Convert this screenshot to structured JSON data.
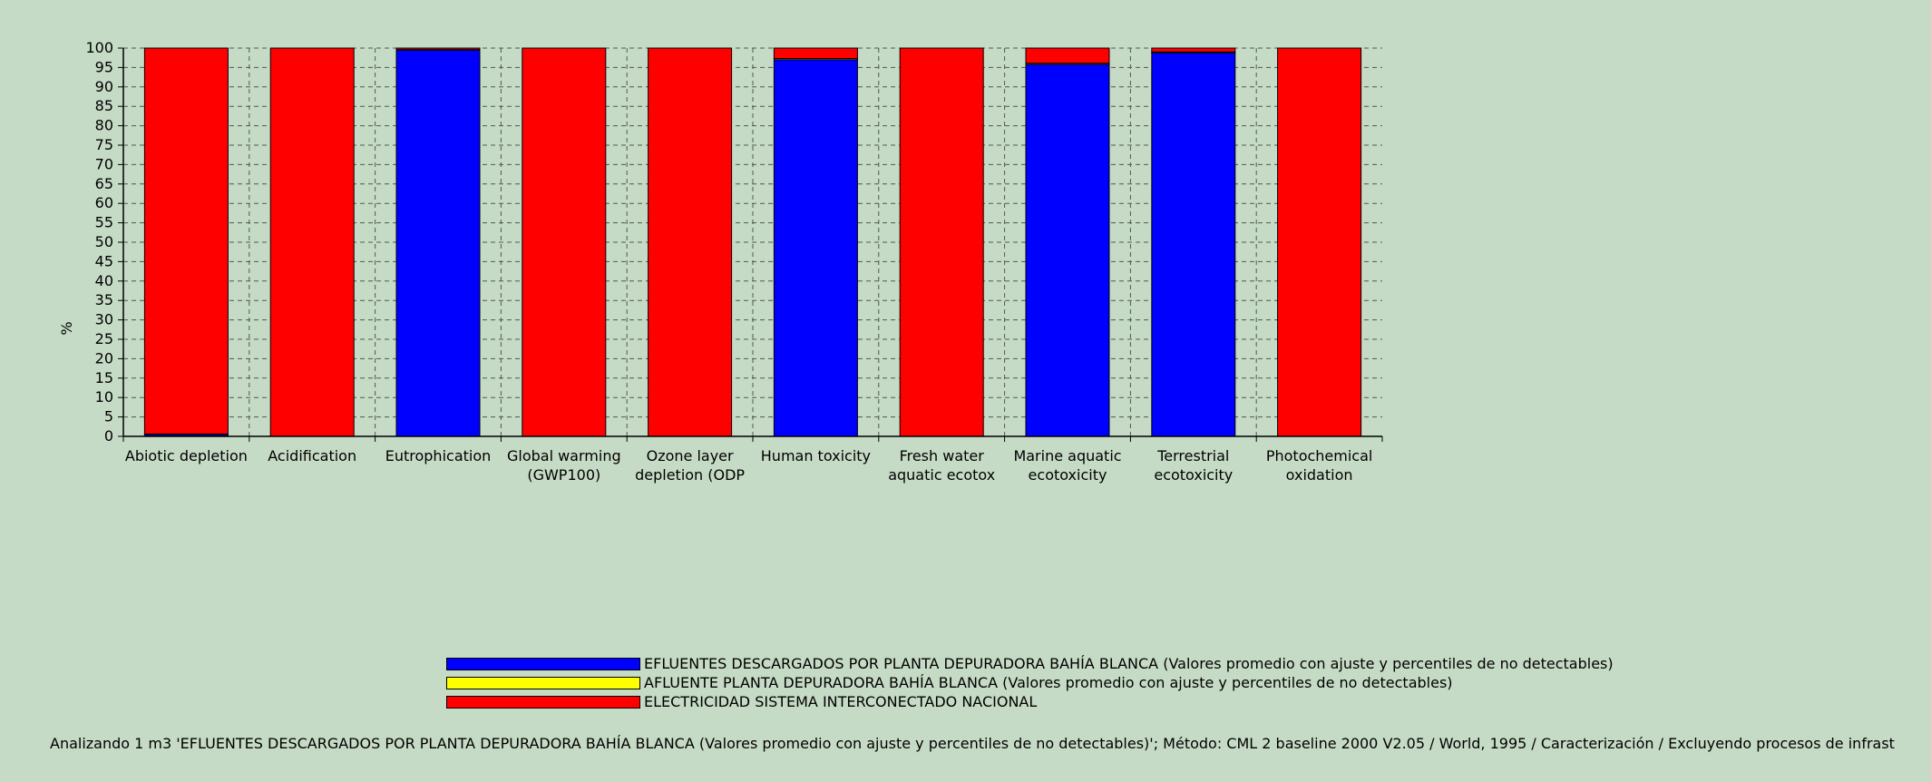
{
  "chart_data": {
    "type": "bar",
    "stacked": true,
    "ylabel": "%",
    "ylim": [
      0,
      100
    ],
    "yticks": [
      0,
      5,
      10,
      15,
      20,
      25,
      30,
      35,
      40,
      45,
      50,
      55,
      60,
      65,
      70,
      75,
      80,
      85,
      90,
      95,
      100
    ],
    "grid": true,
    "categories": [
      [
        "Abiotic depletion"
      ],
      [
        "Acidification"
      ],
      [
        "Eutrophication"
      ],
      [
        "Global warming",
        "(GWP100)"
      ],
      [
        "Ozone layer",
        "depletion (ODP"
      ],
      [
        "Human toxicity"
      ],
      [
        "Fresh water",
        "aquatic ecotox"
      ],
      [
        "Marine aquatic",
        "ecotoxicity"
      ],
      [
        "Terrestrial",
        "ecotoxicity"
      ],
      [
        "Photochemical",
        "oxidation"
      ]
    ],
    "series": [
      {
        "name": "EFLUENTES DESCARGADOS POR PLANTA DEPURADORA BAHÍA BLANCA  (Valores promedio con ajuste y percentiles de no detectables)",
        "color": "#0000ff",
        "values": [
          0.5,
          0,
          99.5,
          0,
          0,
          97,
          0,
          95.8,
          98.8,
          0
        ]
      },
      {
        "name": "AFLUENTE PLANTA DEPURADORA BAHÍA BLANCA (Valores promedio con ajuste y percentiles de no detectables)",
        "color": "#ffff00",
        "values": [
          0.1,
          0,
          0.1,
          0,
          0,
          0.3,
          0,
          0.3,
          0.2,
          0
        ]
      },
      {
        "name": "ELECTRICIDAD SISTEMA INTERCONECTADO NACIONAL",
        "color": "#ff0000",
        "values": [
          99.4,
          100,
          0.4,
          100,
          100,
          2.7,
          100,
          3.9,
          1.0,
          100
        ]
      }
    ]
  },
  "footnote": "Analizando 1 m3 'EFLUENTES DESCARGADOS POR PLANTA DEPURADORA BAHÍA BLANCA  (Valores promedio con ajuste y percentiles de no detectables)';  Método: CML 2 baseline 2000 V2.05 / World, 1995 / Caracterización / Excluyendo procesos de infrast"
}
